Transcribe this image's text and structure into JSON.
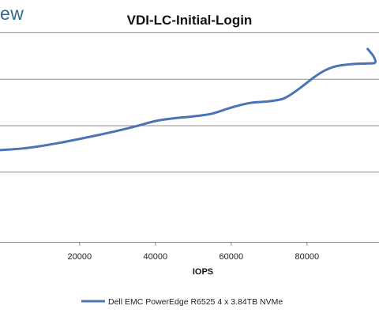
{
  "brand": "ew",
  "chart_data": {
    "type": "line",
    "title": "VDI-LC-Initial-Login",
    "xlabel": "IOPS",
    "ylabel": "",
    "xlim": [
      -1000,
      99000
    ],
    "ylim": [
      0,
      1
    ],
    "x_ticks": [
      20000,
      40000,
      60000,
      80000
    ],
    "x_tick_labels": [
      "20000",
      "40000",
      "60000",
      "80000"
    ],
    "y_gridlines": [
      0.3,
      0.5,
      0.7,
      0.9
    ],
    "grid": true,
    "legend_position": "bottom",
    "series": [
      {
        "name": "Dell EMC PowerEdge R6525 4 x 3.84TB NVMe",
        "color": "#4a74b4",
        "x": [
          -1000,
          5000,
          10000,
          15000,
          20000,
          25000,
          30000,
          35000,
          40000,
          45000,
          50000,
          55000,
          60000,
          65000,
          70000,
          74000,
          78000,
          82000,
          85000,
          88000,
          92000,
          96000,
          98000,
          97500,
          96000
        ],
        "y": [
          0.395,
          0.402,
          0.413,
          0.427,
          0.443,
          0.46,
          0.478,
          0.498,
          0.52,
          0.532,
          0.54,
          0.552,
          0.578,
          0.598,
          0.605,
          0.618,
          0.66,
          0.71,
          0.74,
          0.757,
          0.765,
          0.768,
          0.772,
          0.8,
          0.83
        ]
      }
    ]
  }
}
